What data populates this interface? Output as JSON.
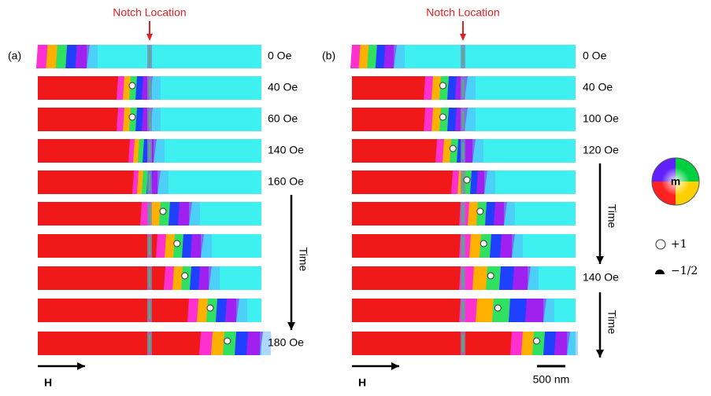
{
  "panels": [
    {
      "label": "(a)",
      "notch": "Notch Location",
      "fields": [
        "0 Oe",
        "40 Oe",
        "60 Oe",
        "140 Oe",
        "160 Oe",
        null,
        null,
        null,
        null,
        "180 Oe"
      ],
      "time": [
        "Time"
      ],
      "field_arrow": "H"
    },
    {
      "label": "(b)",
      "notch": "Notch Location",
      "fields": [
        "0 Oe",
        "40 Oe",
        "100 Oe",
        "120 Oe",
        null,
        null,
        null,
        "140 Oe",
        null,
        null
      ],
      "time": [
        "Time",
        "Time"
      ],
      "field_arrow": "H",
      "scale_bar": "500 nm"
    }
  ],
  "legend": {
    "center": "m",
    "vortex": "+1",
    "antivortex": "−1/2"
  }
}
